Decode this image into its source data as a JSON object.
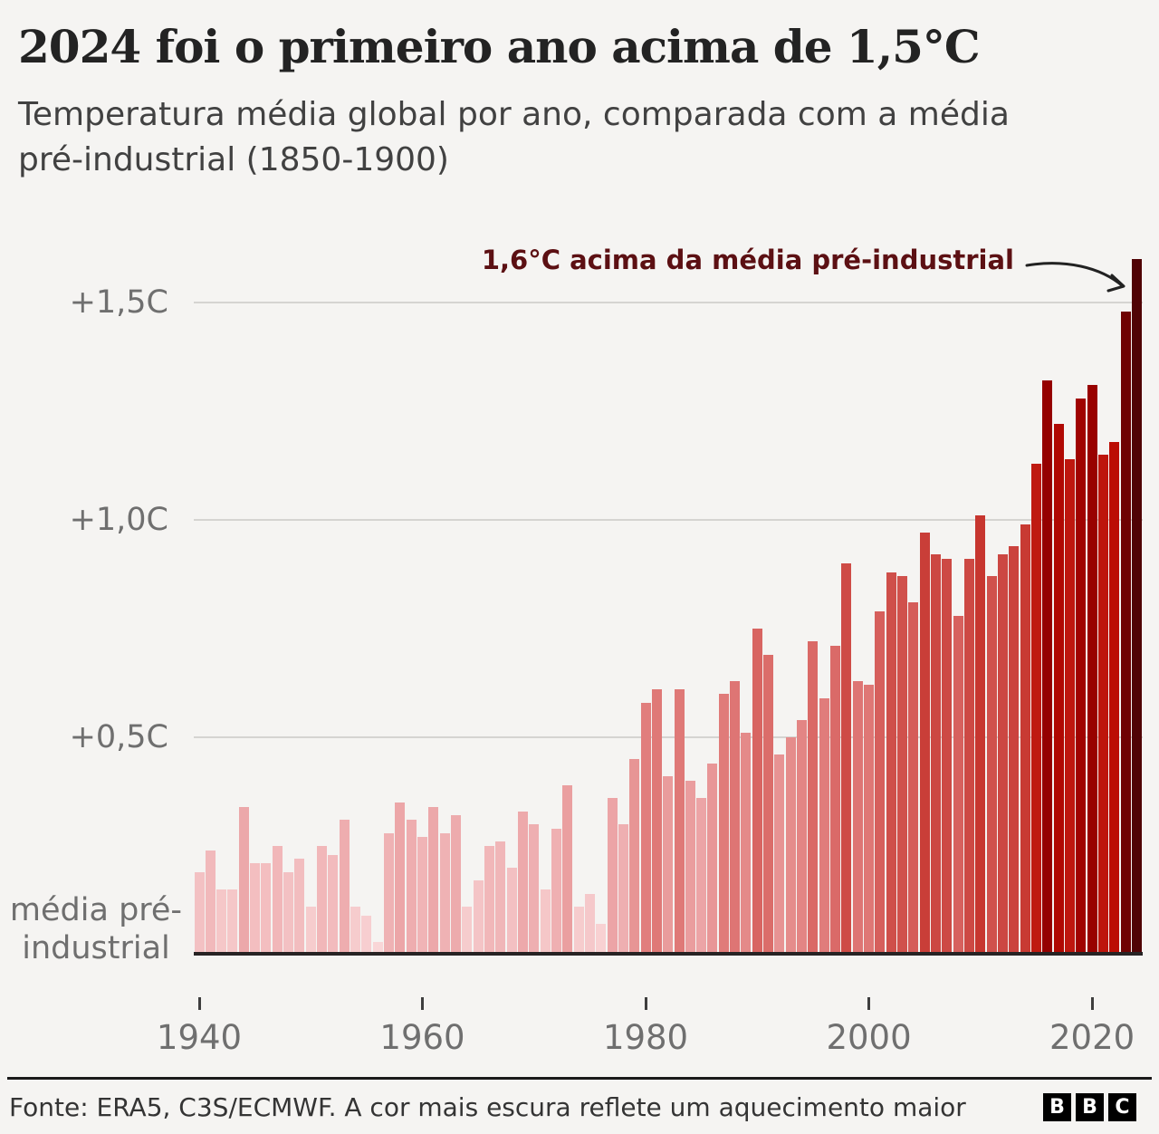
{
  "header": {
    "title": "2024 foi o primeiro ano acima de 1,5°C",
    "subtitle_line1": "Temperatura média global por ano, comparada com a média",
    "subtitle_line2": "pré-industrial (1850-1900)"
  },
  "y_axis": {
    "baseline_label": [
      "média pré-",
      "industrial"
    ]
  },
  "footer": {
    "source": "Fonte: ERA5, C3S/ECMWF. A cor mais escura reflete um aquecimento maior",
    "logo_letters": [
      "B",
      "B",
      "C"
    ]
  },
  "chart_data": {
    "type": "bar",
    "title": "2024 foi o primeiro ano acima de 1,5°C",
    "subtitle": "Temperatura média global por ano, comparada com a média pré-industrial (1850-1900)",
    "x": [
      1940,
      1941,
      1942,
      1943,
      1944,
      1945,
      1946,
      1947,
      1948,
      1949,
      1950,
      1951,
      1952,
      1953,
      1954,
      1955,
      1956,
      1957,
      1958,
      1959,
      1960,
      1961,
      1962,
      1963,
      1964,
      1965,
      1966,
      1967,
      1968,
      1969,
      1970,
      1971,
      1972,
      1973,
      1974,
      1975,
      1976,
      1977,
      1978,
      1979,
      1980,
      1981,
      1982,
      1983,
      1984,
      1985,
      1986,
      1987,
      1988,
      1989,
      1990,
      1991,
      1992,
      1993,
      1994,
      1995,
      1996,
      1997,
      1998,
      1999,
      2000,
      2001,
      2002,
      2003,
      2004,
      2005,
      2006,
      2007,
      2008,
      2009,
      2010,
      2011,
      2012,
      2013,
      2014,
      2015,
      2016,
      2017,
      2018,
      2019,
      2020,
      2021,
      2022,
      2023,
      2024
    ],
    "values": [
      0.19,
      0.24,
      0.15,
      0.15,
      0.34,
      0.21,
      0.21,
      0.25,
      0.19,
      0.22,
      0.11,
      0.25,
      0.23,
      0.31,
      0.11,
      0.09,
      0.03,
      0.28,
      0.35,
      0.31,
      0.27,
      0.34,
      0.28,
      0.32,
      0.11,
      0.17,
      0.25,
      0.26,
      0.2,
      0.33,
      0.3,
      0.15,
      0.29,
      0.39,
      0.11,
      0.14,
      0.07,
      0.36,
      0.3,
      0.45,
      0.58,
      0.61,
      0.41,
      0.61,
      0.4,
      0.36,
      0.44,
      0.6,
      0.63,
      0.51,
      0.75,
      0.69,
      0.46,
      0.5,
      0.54,
      0.72,
      0.59,
      0.71,
      0.9,
      0.63,
      0.62,
      0.79,
      0.88,
      0.87,
      0.81,
      0.97,
      0.92,
      0.91,
      0.78,
      0.91,
      1.01,
      0.87,
      0.92,
      0.94,
      0.99,
      1.13,
      1.32,
      1.22,
      1.14,
      1.28,
      1.31,
      1.15,
      1.18,
      1.48,
      1.6
    ],
    "unit": "°C",
    "ylim": [
      0,
      1.65
    ],
    "gridlines": [
      {
        "value": 1.5,
        "label": "+1,5C"
      },
      {
        "value": 1.0,
        "label": "+1,0C"
      },
      {
        "value": 0.5,
        "label": "+0,5C"
      }
    ],
    "baseline_value": 0,
    "baseline_label": "média pré-industrial",
    "x_ticks": [
      1940,
      1960,
      1980,
      2000,
      2020
    ],
    "legend": "none",
    "annotation": {
      "text": "1,6°C acima da média pré-industrial",
      "points_to_year": 2024,
      "points_to_value": 1.6,
      "color": "#5c1013",
      "arrow_color": "#222222"
    },
    "background": "#f5f4f2",
    "grid_color": "#d5d4d1",
    "axis_color": "#272324",
    "label_color": "#6f6f6f",
    "color_scale": [
      [
        0.0,
        "#fadadb"
      ],
      [
        0.2,
        "#f3c0c2"
      ],
      [
        0.35,
        "#eca6a8"
      ],
      [
        0.5,
        "#e58c8b"
      ],
      [
        0.65,
        "#dd7270"
      ],
      [
        0.8,
        "#d65e5b"
      ],
      [
        0.92,
        "#cc4742"
      ],
      [
        1.05,
        "#c52f27"
      ],
      [
        1.18,
        "#bb0d04"
      ],
      [
        1.3,
        "#9b0100"
      ],
      [
        1.38,
        "#840000"
      ],
      [
        1.5,
        "#6b0203"
      ],
      [
        1.62,
        "#4a0305"
      ]
    ]
  }
}
